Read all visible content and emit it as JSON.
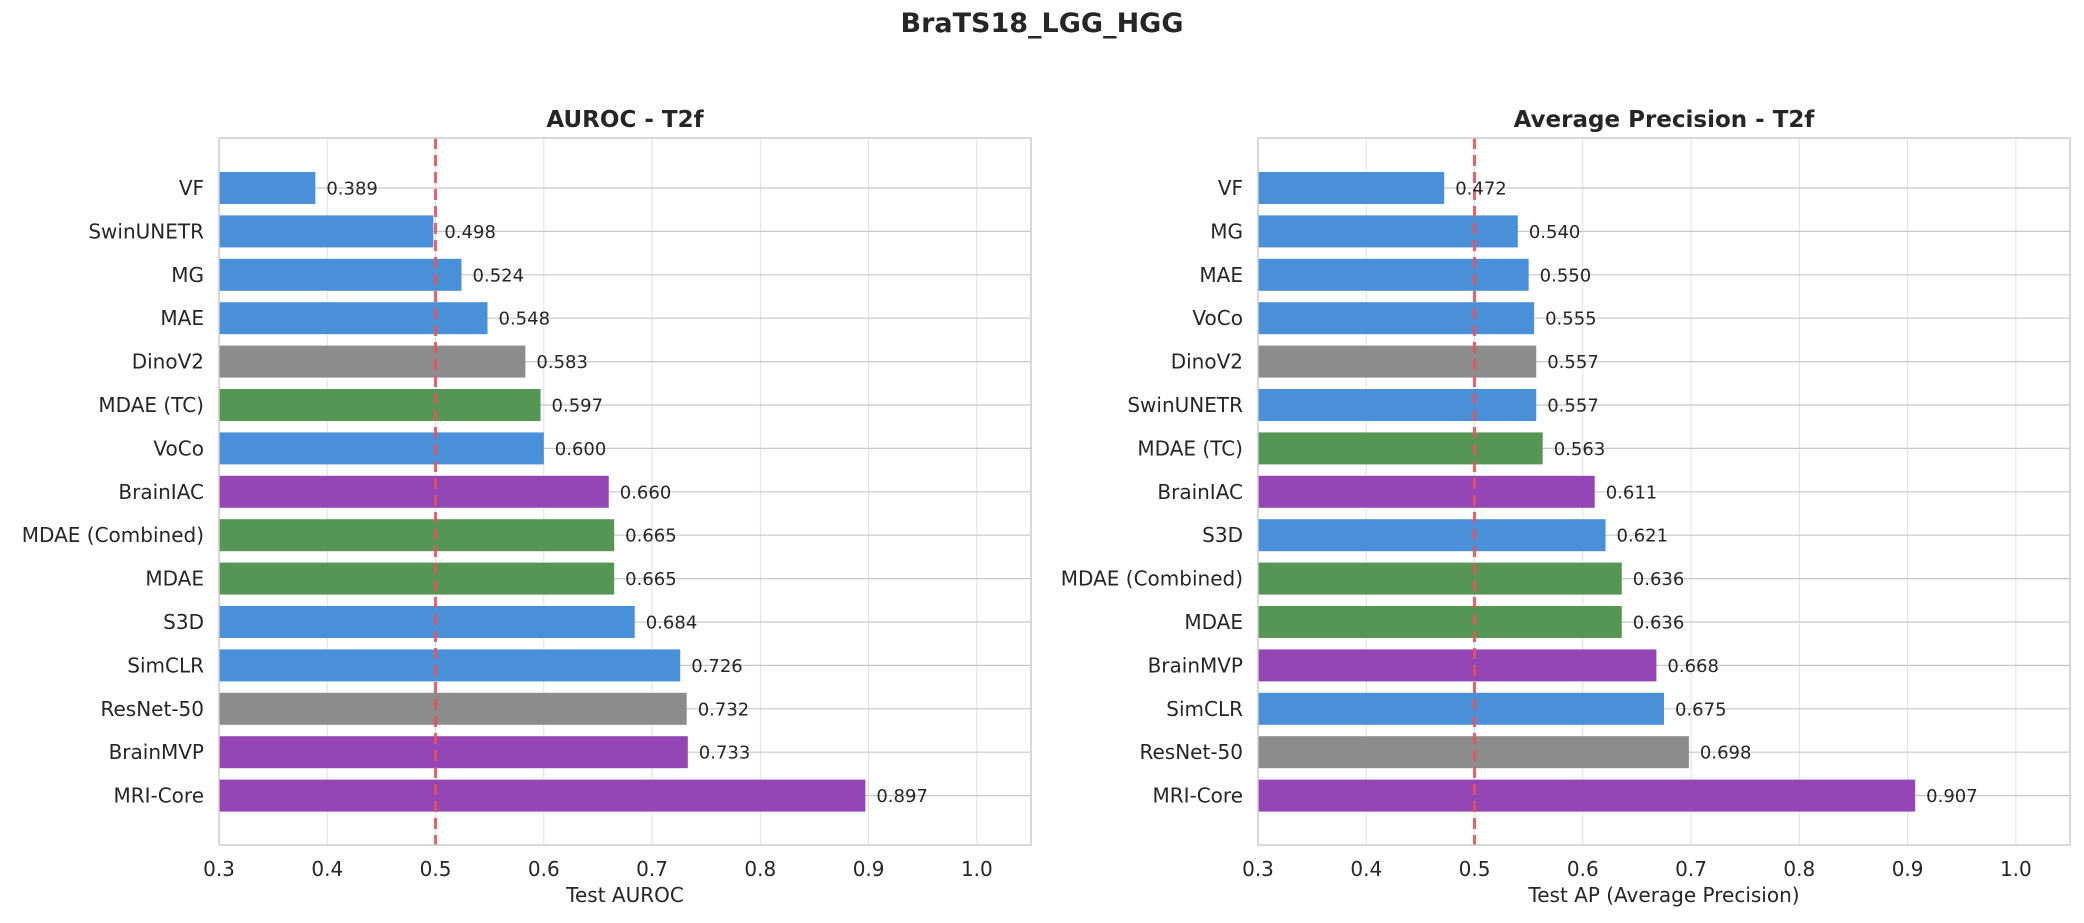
{
  "figure_title": "BraTS18_LGG_HGG",
  "colors": {
    "blue": "#4a90d9",
    "gray": "#8c8c8c",
    "green": "#559655",
    "purple": "#9446b4",
    "reference_line": "#e8525a",
    "grid": "#e0e0e0",
    "frame": "#cccccc"
  },
  "chart_data": [
    {
      "type": "bar",
      "orientation": "horizontal",
      "title": "AUROC - T2f",
      "xlabel": "Test AUROC",
      "ylabel": "",
      "xlim": [
        0.3,
        1.05
      ],
      "xticks": [
        "0.3",
        "0.4",
        "0.5",
        "0.6",
        "0.7",
        "0.8",
        "0.9",
        "1.0"
      ],
      "reference_line": 0.5,
      "grid": true,
      "categories": [
        "VF",
        "SwinUNETR",
        "MG",
        "MAE",
        "DinoV2",
        "MDAE (TC)",
        "VoCo",
        "BrainIAC",
        "MDAE (Combined)",
        "MDAE",
        "S3D",
        "SimCLR",
        "ResNet-50",
        "BrainMVP",
        "MRI-Core"
      ],
      "values": [
        0.389,
        0.498,
        0.524,
        0.548,
        0.583,
        0.597,
        0.6,
        0.66,
        0.665,
        0.665,
        0.684,
        0.726,
        0.732,
        0.733,
        0.897
      ],
      "labels": [
        "0.389",
        "0.498",
        "0.524",
        "0.548",
        "0.583",
        "0.597",
        "0.600",
        "0.660",
        "0.665",
        "0.665",
        "0.684",
        "0.726",
        "0.732",
        "0.733",
        "0.897"
      ],
      "bar_colors": [
        "blue",
        "blue",
        "blue",
        "blue",
        "gray",
        "green",
        "blue",
        "purple",
        "green",
        "green",
        "blue",
        "blue",
        "gray",
        "purple",
        "purple"
      ]
    },
    {
      "type": "bar",
      "orientation": "horizontal",
      "title": "Average Precision - T2f",
      "xlabel": "Test AP (Average Precision)",
      "ylabel": "",
      "xlim": [
        0.3,
        1.05
      ],
      "xticks": [
        "0.3",
        "0.4",
        "0.5",
        "0.6",
        "0.7",
        "0.8",
        "0.9",
        "1.0"
      ],
      "reference_line": 0.5,
      "grid": true,
      "categories": [
        "VF",
        "MG",
        "MAE",
        "VoCo",
        "DinoV2",
        "SwinUNETR",
        "MDAE (TC)",
        "BrainIAC",
        "S3D",
        "MDAE (Combined)",
        "MDAE",
        "BrainMVP",
        "SimCLR",
        "ResNet-50",
        "MRI-Core"
      ],
      "values": [
        0.472,
        0.54,
        0.55,
        0.555,
        0.557,
        0.557,
        0.563,
        0.611,
        0.621,
        0.636,
        0.636,
        0.668,
        0.675,
        0.698,
        0.907
      ],
      "labels": [
        "0.472",
        "0.540",
        "0.550",
        "0.555",
        "0.557",
        "0.557",
        "0.563",
        "0.611",
        "0.621",
        "0.636",
        "0.636",
        "0.668",
        "0.675",
        "0.698",
        "0.907"
      ],
      "bar_colors": [
        "blue",
        "blue",
        "blue",
        "blue",
        "gray",
        "blue",
        "green",
        "purple",
        "blue",
        "green",
        "green",
        "purple",
        "blue",
        "gray",
        "purple"
      ]
    }
  ]
}
